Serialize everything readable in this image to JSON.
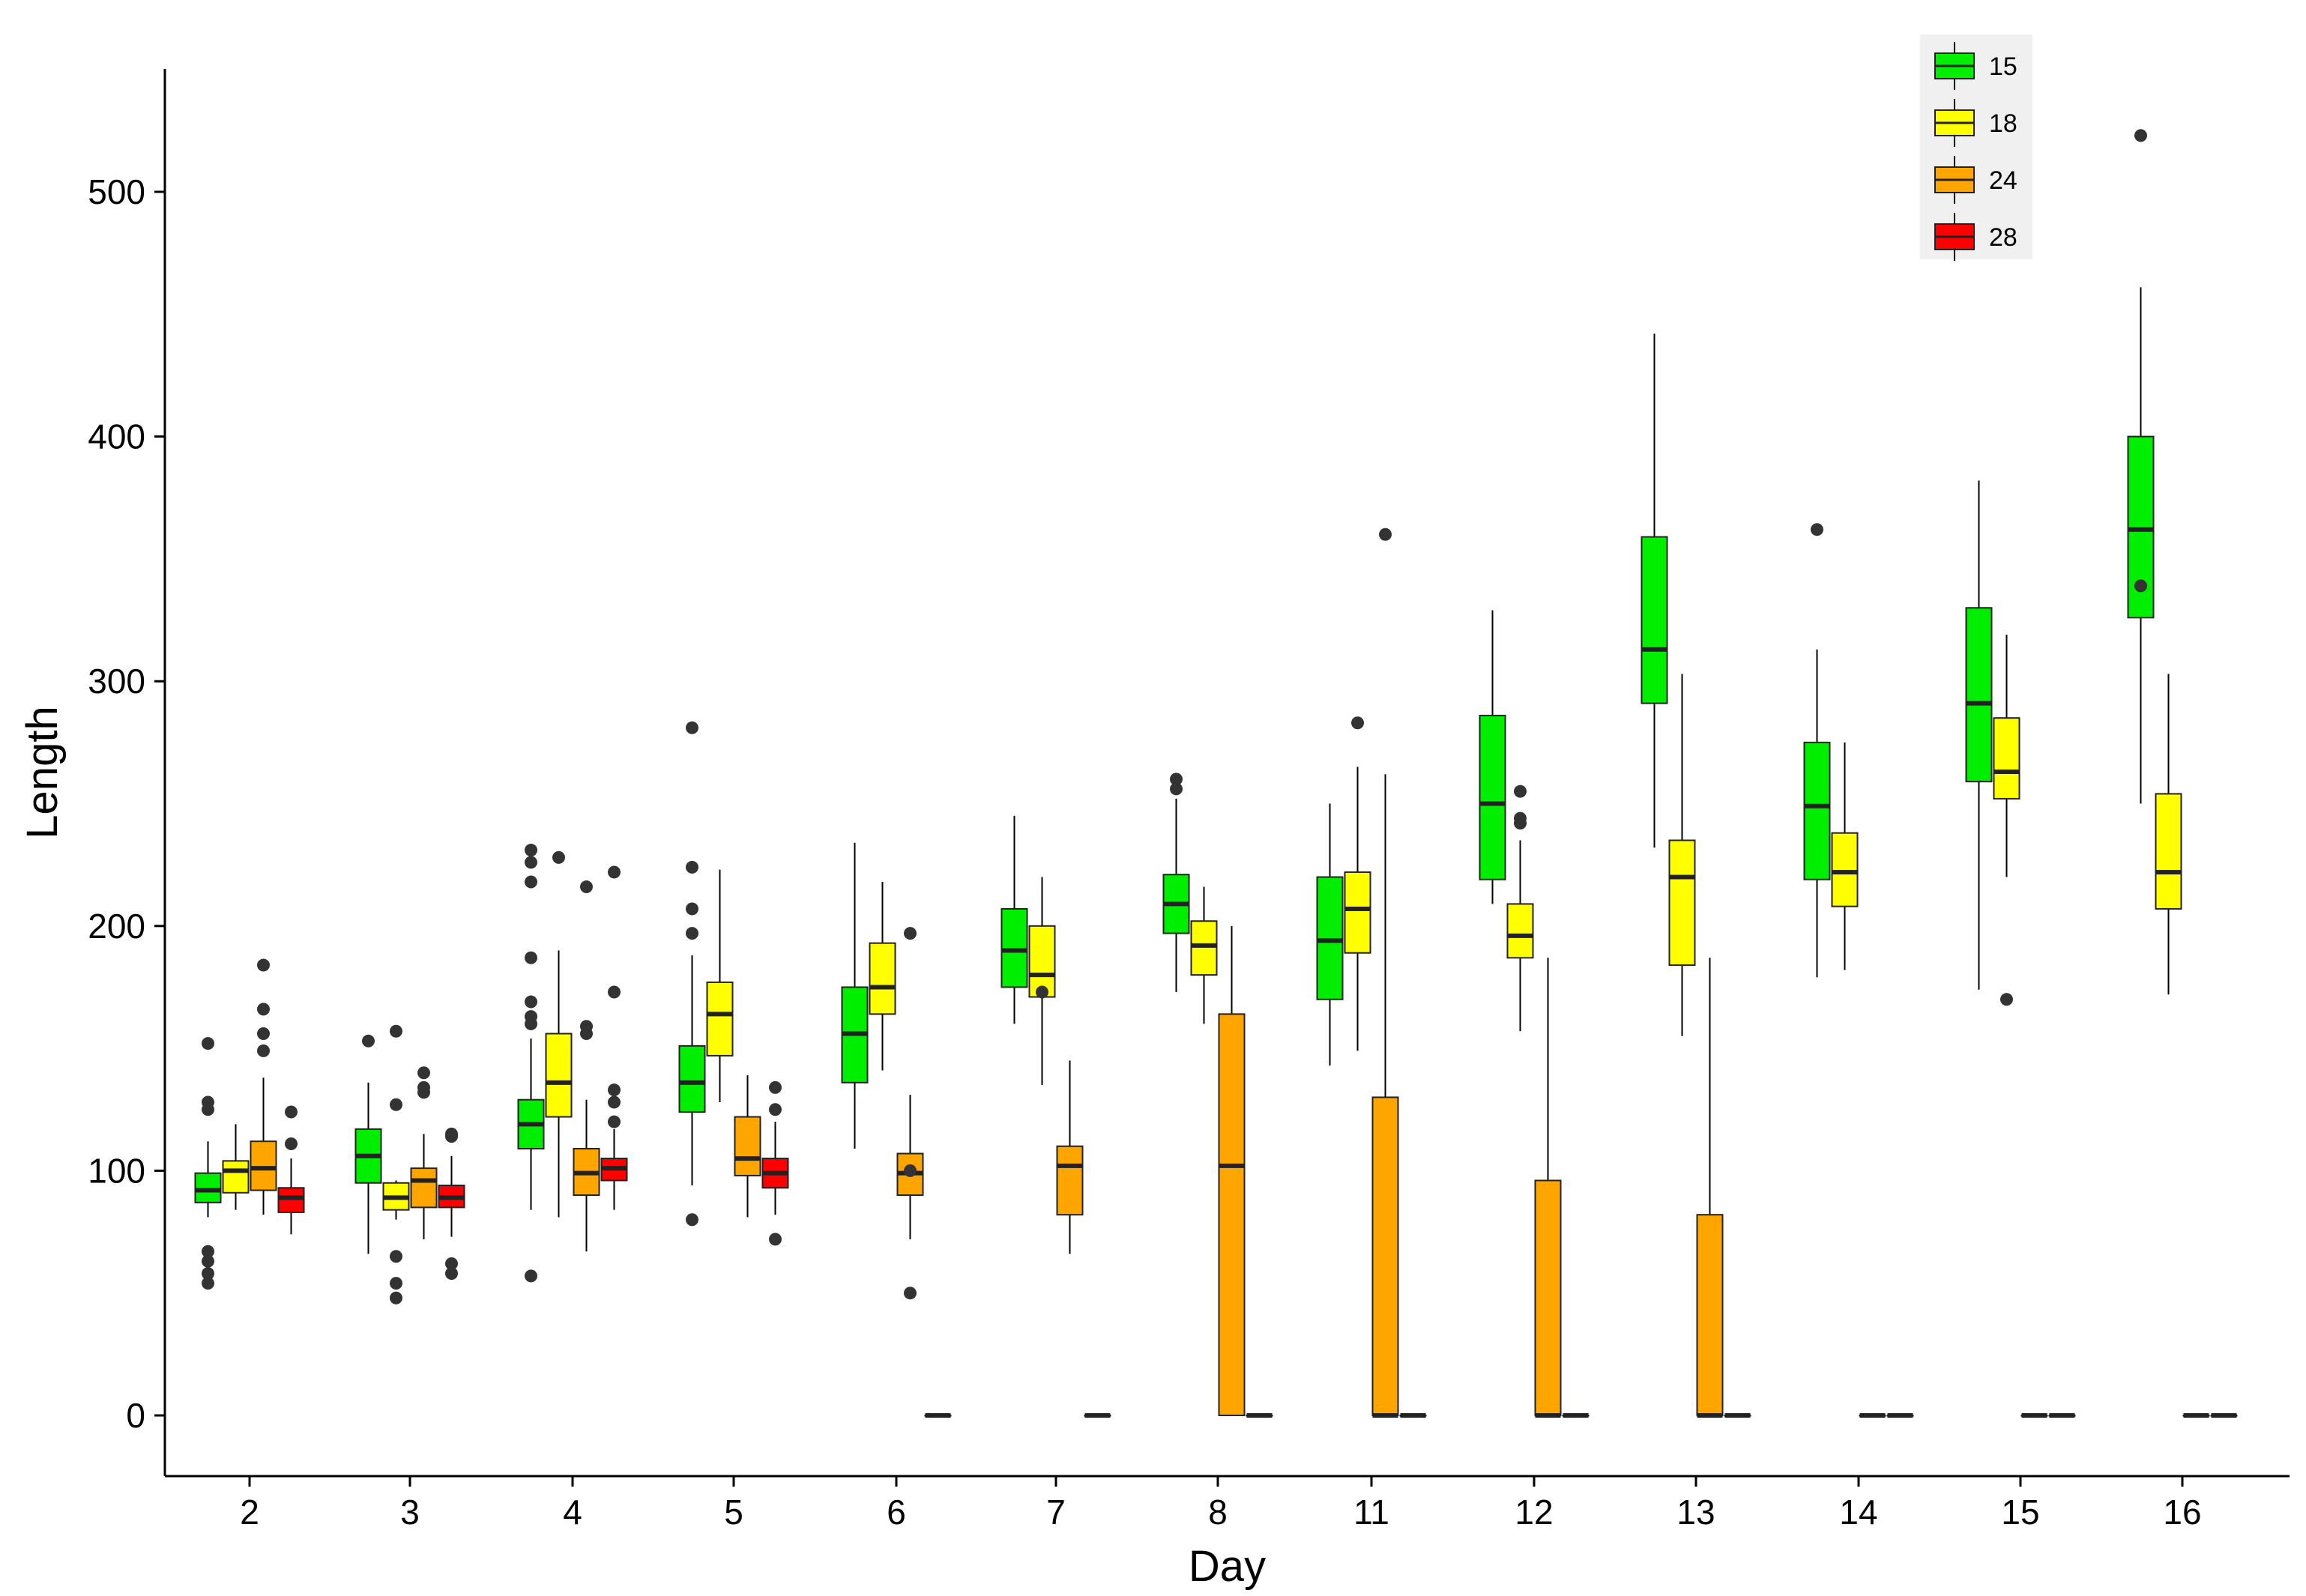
{
  "chart_data": {
    "type": "boxplot",
    "title": "",
    "xlabel": "Day",
    "ylabel": "Length",
    "ylim": [
      -25,
      550
    ],
    "yticks": [
      0,
      100,
      200,
      300,
      400,
      500
    ],
    "grid": false,
    "legend_position": "top-right",
    "categories": [
      "2",
      "3",
      "4",
      "5",
      "6",
      "7",
      "8",
      "11",
      "12",
      "13",
      "14",
      "15",
      "16"
    ],
    "groups": [
      {
        "name": "15",
        "color": "#00ee00"
      },
      {
        "name": "18",
        "color": "#ffff00"
      },
      {
        "name": "24",
        "color": "#ffa500"
      },
      {
        "name": "28",
        "color": "#ff0000"
      }
    ],
    "boxes": [
      {
        "day": "2",
        "group": "15",
        "whislo": 81,
        "q1": 87,
        "med": 92,
        "q3": 99,
        "whishi": 112,
        "outliers": [
          54,
          58,
          63,
          67,
          125,
          128,
          152
        ]
      },
      {
        "day": "2",
        "group": "18",
        "whislo": 84,
        "q1": 91,
        "med": 100,
        "q3": 104,
        "whishi": 119,
        "outliers": []
      },
      {
        "day": "2",
        "group": "24",
        "whislo": 82,
        "q1": 92,
        "med": 101,
        "q3": 112,
        "whishi": 138,
        "outliers": [
          149,
          156,
          166,
          184
        ]
      },
      {
        "day": "2",
        "group": "28",
        "whislo": 74,
        "q1": 83,
        "med": 89,
        "q3": 93,
        "whishi": 105,
        "outliers": [
          111,
          124
        ]
      },
      {
        "day": "3",
        "group": "15",
        "whislo": 66,
        "q1": 95,
        "med": 106,
        "q3": 117,
        "whishi": 136,
        "outliers": [
          153
        ]
      },
      {
        "day": "3",
        "group": "18",
        "whislo": 80,
        "q1": 84,
        "med": 89,
        "q3": 95,
        "whishi": 96,
        "outliers": [
          48,
          54,
          65,
          127,
          157
        ]
      },
      {
        "day": "3",
        "group": "24",
        "whislo": 72,
        "q1": 85,
        "med": 96,
        "q3": 101,
        "whishi": 115,
        "outliers": [
          132,
          134,
          140
        ]
      },
      {
        "day": "3",
        "group": "28",
        "whislo": 73,
        "q1": 85,
        "med": 89,
        "q3": 94,
        "whishi": 106,
        "outliers": [
          58,
          62,
          114,
          115
        ]
      },
      {
        "day": "4",
        "group": "15",
        "whislo": 84,
        "q1": 109,
        "med": 119,
        "q3": 129,
        "whishi": 154,
        "outliers": [
          57,
          160,
          163,
          169,
          187,
          218,
          226,
          231
        ]
      },
      {
        "day": "4",
        "group": "18",
        "whislo": 81,
        "q1": 122,
        "med": 136,
        "q3": 156,
        "whishi": 190,
        "outliers": [
          228
        ]
      },
      {
        "day": "4",
        "group": "24",
        "whislo": 67,
        "q1": 90,
        "med": 99,
        "q3": 109,
        "whishi": 129,
        "outliers": [
          156,
          159,
          216
        ]
      },
      {
        "day": "4",
        "group": "28",
        "whislo": 84,
        "q1": 96,
        "med": 101,
        "q3": 105,
        "whishi": 117,
        "outliers": [
          120,
          128,
          133,
          173,
          222
        ]
      },
      {
        "day": "5",
        "group": "15",
        "whislo": 94,
        "q1": 124,
        "med": 136,
        "q3": 151,
        "whishi": 188,
        "outliers": [
          80,
          197,
          207,
          224,
          281
        ]
      },
      {
        "day": "5",
        "group": "18",
        "whislo": 128,
        "q1": 147,
        "med": 164,
        "q3": 177,
        "whishi": 223,
        "outliers": []
      },
      {
        "day": "5",
        "group": "24",
        "whislo": 81,
        "q1": 98,
        "med": 105,
        "q3": 122,
        "whishi": 139,
        "outliers": []
      },
      {
        "day": "5",
        "group": "28",
        "whislo": 82,
        "q1": 93,
        "med": 99,
        "q3": 105,
        "whishi": 120,
        "outliers": [
          72,
          125,
          134
        ]
      },
      {
        "day": "6",
        "group": "15",
        "whislo": 109,
        "q1": 136,
        "med": 156,
        "q3": 175,
        "whishi": 234,
        "outliers": []
      },
      {
        "day": "6",
        "group": "18",
        "whislo": 141,
        "q1": 164,
        "med": 175,
        "q3": 193,
        "whishi": 218,
        "outliers": []
      },
      {
        "day": "6",
        "group": "24",
        "whislo": 72,
        "q1": 90,
        "med": 99,
        "q3": 107,
        "whishi": 131,
        "outliers": [
          50,
          100,
          197
        ]
      },
      {
        "day": "6",
        "group": "28",
        "whislo": 0,
        "q1": 0,
        "med": 0,
        "q3": 0,
        "whishi": 0,
        "outliers": []
      },
      {
        "day": "7",
        "group": "15",
        "whislo": 160,
        "q1": 175,
        "med": 190,
        "q3": 207,
        "whishi": 245,
        "outliers": []
      },
      {
        "day": "7",
        "group": "18",
        "whislo": 135,
        "q1": 171,
        "med": 180,
        "q3": 200,
        "whishi": 220,
        "outliers": [
          173
        ]
      },
      {
        "day": "7",
        "group": "24",
        "whislo": 66,
        "q1": 82,
        "med": 102,
        "q3": 110,
        "whishi": 145,
        "outliers": []
      },
      {
        "day": "7",
        "group": "28",
        "whislo": 0,
        "q1": 0,
        "med": 0,
        "q3": 0,
        "whishi": 0,
        "outliers": []
      },
      {
        "day": "8",
        "group": "15",
        "whislo": 173,
        "q1": 197,
        "med": 209,
        "q3": 221,
        "whishi": 252,
        "outliers": [
          256,
          260
        ]
      },
      {
        "day": "8",
        "group": "18",
        "whislo": 160,
        "q1": 180,
        "med": 192,
        "q3": 202,
        "whishi": 216,
        "outliers": []
      },
      {
        "day": "8",
        "group": "24",
        "whislo": 0,
        "q1": 0,
        "med": 102,
        "q3": 164,
        "whishi": 200,
        "outliers": []
      },
      {
        "day": "8",
        "group": "28",
        "whislo": 0,
        "q1": 0,
        "med": 0,
        "q3": 0,
        "whishi": 0,
        "outliers": []
      },
      {
        "day": "11",
        "group": "15",
        "whislo": 143,
        "q1": 170,
        "med": 194,
        "q3": 220,
        "whishi": 250,
        "outliers": []
      },
      {
        "day": "11",
        "group": "18",
        "whislo": 149,
        "q1": 189,
        "med": 207,
        "q3": 222,
        "whishi": 265,
        "outliers": [
          283
        ]
      },
      {
        "day": "11",
        "group": "24",
        "whislo": 0,
        "q1": 0,
        "med": 0,
        "q3": 130,
        "whishi": 262,
        "outliers": [
          360
        ]
      },
      {
        "day": "11",
        "group": "28",
        "whislo": 0,
        "q1": 0,
        "med": 0,
        "q3": 0,
        "whishi": 0,
        "outliers": []
      },
      {
        "day": "12",
        "group": "15",
        "whislo": 209,
        "q1": 219,
        "med": 250,
        "q3": 286,
        "whishi": 329,
        "outliers": []
      },
      {
        "day": "12",
        "group": "18",
        "whislo": 157,
        "q1": 187,
        "med": 196,
        "q3": 209,
        "whishi": 235,
        "outliers": [
          242,
          244,
          255
        ]
      },
      {
        "day": "12",
        "group": "24",
        "whislo": 0,
        "q1": 0,
        "med": 0,
        "q3": 96,
        "whishi": 187,
        "outliers": []
      },
      {
        "day": "12",
        "group": "28",
        "whislo": 0,
        "q1": 0,
        "med": 0,
        "q3": 0,
        "whishi": 0,
        "outliers": []
      },
      {
        "day": "13",
        "group": "15",
        "whislo": 232,
        "q1": 291,
        "med": 313,
        "q3": 359,
        "whishi": 442,
        "outliers": []
      },
      {
        "day": "13",
        "group": "18",
        "whislo": 155,
        "q1": 184,
        "med": 220,
        "q3": 235,
        "whishi": 303,
        "outliers": []
      },
      {
        "day": "13",
        "group": "24",
        "whislo": 0,
        "q1": 0,
        "med": 0,
        "q3": 82,
        "whishi": 187,
        "outliers": []
      },
      {
        "day": "13",
        "group": "28",
        "whislo": 0,
        "q1": 0,
        "med": 0,
        "q3": 0,
        "whishi": 0,
        "outliers": []
      },
      {
        "day": "14",
        "group": "15",
        "whislo": 179,
        "q1": 219,
        "med": 249,
        "q3": 275,
        "whishi": 313,
        "outliers": [
          362
        ]
      },
      {
        "day": "14",
        "group": "18",
        "whislo": 182,
        "q1": 208,
        "med": 222,
        "q3": 238,
        "whishi": 275,
        "outliers": []
      },
      {
        "day": "14",
        "group": "24",
        "whislo": 0,
        "q1": 0,
        "med": 0,
        "q3": 0,
        "whishi": 0,
        "outliers": []
      },
      {
        "day": "14",
        "group": "28",
        "whislo": 0,
        "q1": 0,
        "med": 0,
        "q3": 0,
        "whishi": 0,
        "outliers": []
      },
      {
        "day": "15",
        "group": "15",
        "whislo": 174,
        "q1": 259,
        "med": 291,
        "q3": 330,
        "whishi": 382,
        "outliers": []
      },
      {
        "day": "15",
        "group": "18",
        "whislo": 220,
        "q1": 252,
        "med": 263,
        "q3": 285,
        "whishi": 319,
        "outliers": [
          170
        ]
      },
      {
        "day": "15",
        "group": "24",
        "whislo": 0,
        "q1": 0,
        "med": 0,
        "q3": 0,
        "whishi": 0,
        "outliers": []
      },
      {
        "day": "15",
        "group": "28",
        "whislo": 0,
        "q1": 0,
        "med": 0,
        "q3": 0,
        "whishi": 0,
        "outliers": []
      },
      {
        "day": "16",
        "group": "15",
        "whislo": 250,
        "q1": 326,
        "med": 362,
        "q3": 400,
        "whishi": 461,
        "outliers": [
          339,
          523
        ]
      },
      {
        "day": "16",
        "group": "18",
        "whislo": 172,
        "q1": 207,
        "med": 222,
        "q3": 254,
        "whishi": 303,
        "outliers": []
      },
      {
        "day": "16",
        "group": "24",
        "whislo": 0,
        "q1": 0,
        "med": 0,
        "q3": 0,
        "whishi": 0,
        "outliers": []
      },
      {
        "day": "16",
        "group": "28",
        "whislo": 0,
        "q1": 0,
        "med": 0,
        "q3": 0,
        "whishi": 0,
        "outliers": []
      }
    ]
  }
}
